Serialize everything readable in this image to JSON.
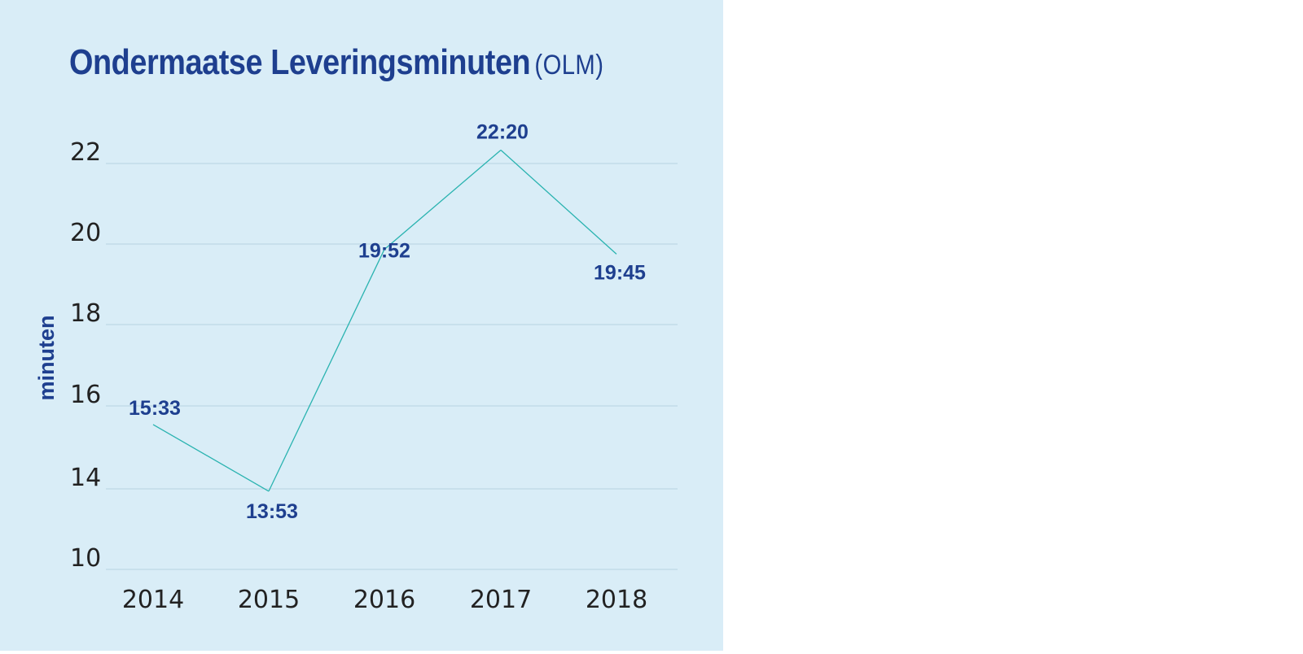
{
  "chart_data": {
    "type": "line",
    "title": "Ondermaatse Leveringsminuten",
    "title_suffix": "(OLM)",
    "ylabel": "minuten",
    "xlabel": "",
    "categories": [
      "2014",
      "2015",
      "2016",
      "2017",
      "2018"
    ],
    "values": [
      15.55,
      13.883,
      19.867,
      22.333,
      19.75
    ],
    "data_labels": [
      "15:33",
      "13:53",
      "19:52",
      "22:20",
      "19:45"
    ],
    "y_ticks": [
      10,
      14,
      16,
      18,
      20,
      22
    ],
    "grid": "horizontal",
    "legend": "none"
  },
  "colors": {
    "panel_background": "#d9edf7",
    "title": "#1e3f8f",
    "line": "#2ab3b0",
    "gridline": "#b7d3e2",
    "data_label": "#1e3f8f",
    "tick_label": "#222222"
  }
}
